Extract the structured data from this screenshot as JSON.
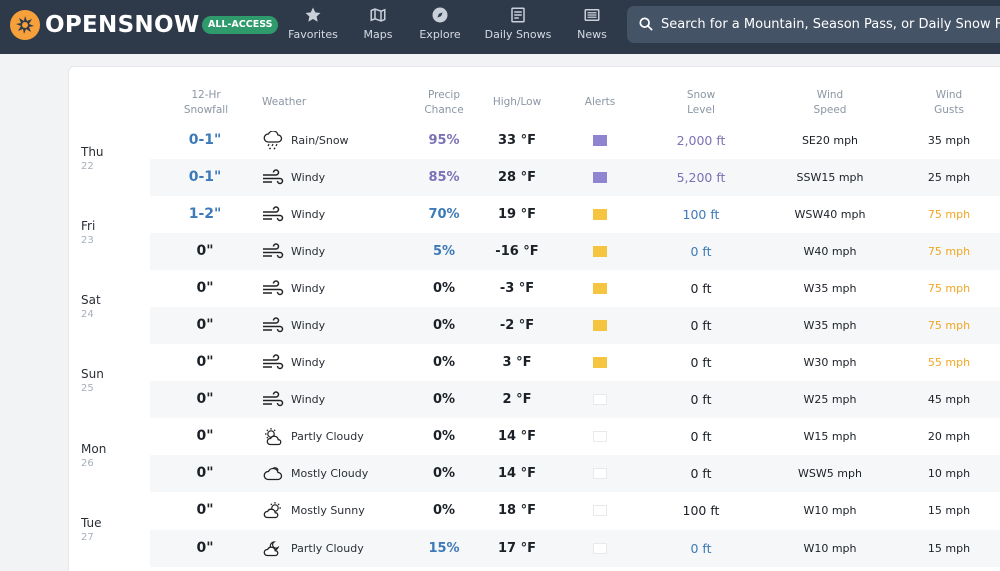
{
  "header": {
    "brand": "OPENSNOW",
    "badge": "ALL-ACCESS",
    "nav": [
      {
        "label": "Favorites",
        "icon": "star-icon"
      },
      {
        "label": "Maps",
        "icon": "map-icon"
      },
      {
        "label": "Explore",
        "icon": "compass-icon"
      },
      {
        "label": "Daily Snows",
        "icon": "newspaper-icon"
      },
      {
        "label": "News",
        "icon": "news-icon"
      }
    ],
    "search_placeholder": "Search for a Mountain, Season Pass, or Daily Snow Forecast"
  },
  "columns": {
    "snowfall_1": "12-Hr",
    "snowfall_2": "Snowfall",
    "weather": "Weather",
    "precip_1": "Precip",
    "precip_2": "Chance",
    "hilo": "High/Low",
    "alerts": "Alerts",
    "snowlevel_1": "Snow",
    "snowlevel_2": "Level",
    "wind_1": "Wind",
    "wind_2": "Speed",
    "gust_1": "Wind",
    "gust_2": "Gusts"
  },
  "days": [
    {
      "name": "Thu",
      "date": "22"
    },
    {
      "name": "Fri",
      "date": "23"
    },
    {
      "name": "Sat",
      "date": "24"
    },
    {
      "name": "Sun",
      "date": "25"
    },
    {
      "name": "Mon",
      "date": "26"
    },
    {
      "name": "Tue",
      "date": "27"
    }
  ],
  "rows": [
    {
      "snow": "0-1\"",
      "weather": "Rain/Snow",
      "icon": "rain-snow-icon",
      "precip": "95%",
      "hilo": "33 °F",
      "alert": "purple",
      "snow_level": "2,000 ft",
      "wind": "SE20 mph",
      "gust": "35 mph"
    },
    {
      "snow": "0-1\"",
      "weather": "Windy",
      "icon": "wind-icon",
      "precip": "85%",
      "hilo": "28 °F",
      "alert": "purple",
      "snow_level": "5,200 ft",
      "wind": "SSW15 mph",
      "gust": "25 mph"
    },
    {
      "snow": "1-2\"",
      "weather": "Windy",
      "icon": "wind-icon",
      "precip": "70%",
      "hilo": "19 °F",
      "alert": "yellow",
      "snow_level": "100 ft",
      "wind": "WSW40 mph",
      "gust": "75 mph"
    },
    {
      "snow": "0\"",
      "weather": "Windy",
      "icon": "wind-icon",
      "precip": "5%",
      "hilo": "-16 °F",
      "alert": "yellow",
      "snow_level": "0 ft",
      "wind": "W40 mph",
      "gust": "75 mph"
    },
    {
      "snow": "0\"",
      "weather": "Windy",
      "icon": "wind-icon",
      "precip": "0%",
      "hilo": "-3 °F",
      "alert": "yellow",
      "snow_level": "0 ft",
      "wind": "W35 mph",
      "gust": "75 mph"
    },
    {
      "snow": "0\"",
      "weather": "Windy",
      "icon": "wind-icon",
      "precip": "0%",
      "hilo": "-2 °F",
      "alert": "yellow",
      "snow_level": "0 ft",
      "wind": "W35 mph",
      "gust": "75 mph"
    },
    {
      "snow": "0\"",
      "weather": "Windy",
      "icon": "wind-icon",
      "precip": "0%",
      "hilo": "3 °F",
      "alert": "yellow",
      "snow_level": "0 ft",
      "wind": "W30 mph",
      "gust": "55 mph"
    },
    {
      "snow": "0\"",
      "weather": "Windy",
      "icon": "wind-icon",
      "precip": "0%",
      "hilo": "2 °F",
      "alert": "none",
      "snow_level": "0 ft",
      "wind": "W25 mph",
      "gust": "45 mph"
    },
    {
      "snow": "0\"",
      "weather": "Partly Cloudy",
      "icon": "partly-cloudy-day-icon",
      "precip": "0%",
      "hilo": "14 °F",
      "alert": "none",
      "snow_level": "0 ft",
      "wind": "W15 mph",
      "gust": "20 mph"
    },
    {
      "snow": "0\"",
      "weather": "Mostly Cloudy",
      "icon": "cloud-icon",
      "precip": "0%",
      "hilo": "14 °F",
      "alert": "none",
      "snow_level": "0 ft",
      "wind": "WSW5 mph",
      "gust": "10 mph"
    },
    {
      "snow": "0\"",
      "weather": "Mostly Sunny",
      "icon": "mostly-sunny-icon",
      "precip": "0%",
      "hilo": "18 °F",
      "alert": "none",
      "snow_level": "100 ft",
      "wind": "W10 mph",
      "gust": "15 mph"
    },
    {
      "snow": "0\"",
      "weather": "Partly Cloudy",
      "icon": "partly-cloudy-night-icon",
      "precip": "15%",
      "hilo": "17 °F",
      "alert": "none",
      "snow_level": "0 ft",
      "wind": "W10 mph",
      "gust": "15 mph"
    }
  ],
  "colors": {
    "nav_bg": "#2e3a4a",
    "badge_bg": "#2f9a6b",
    "logo_orange": "#f5a03a",
    "snow_blue": "#3c7ab9",
    "precip_purple": "#7b72b6",
    "alert_purple": "#8f84cf",
    "alert_yellow": "#f5c542",
    "gust_orange": "#f0a621"
  }
}
